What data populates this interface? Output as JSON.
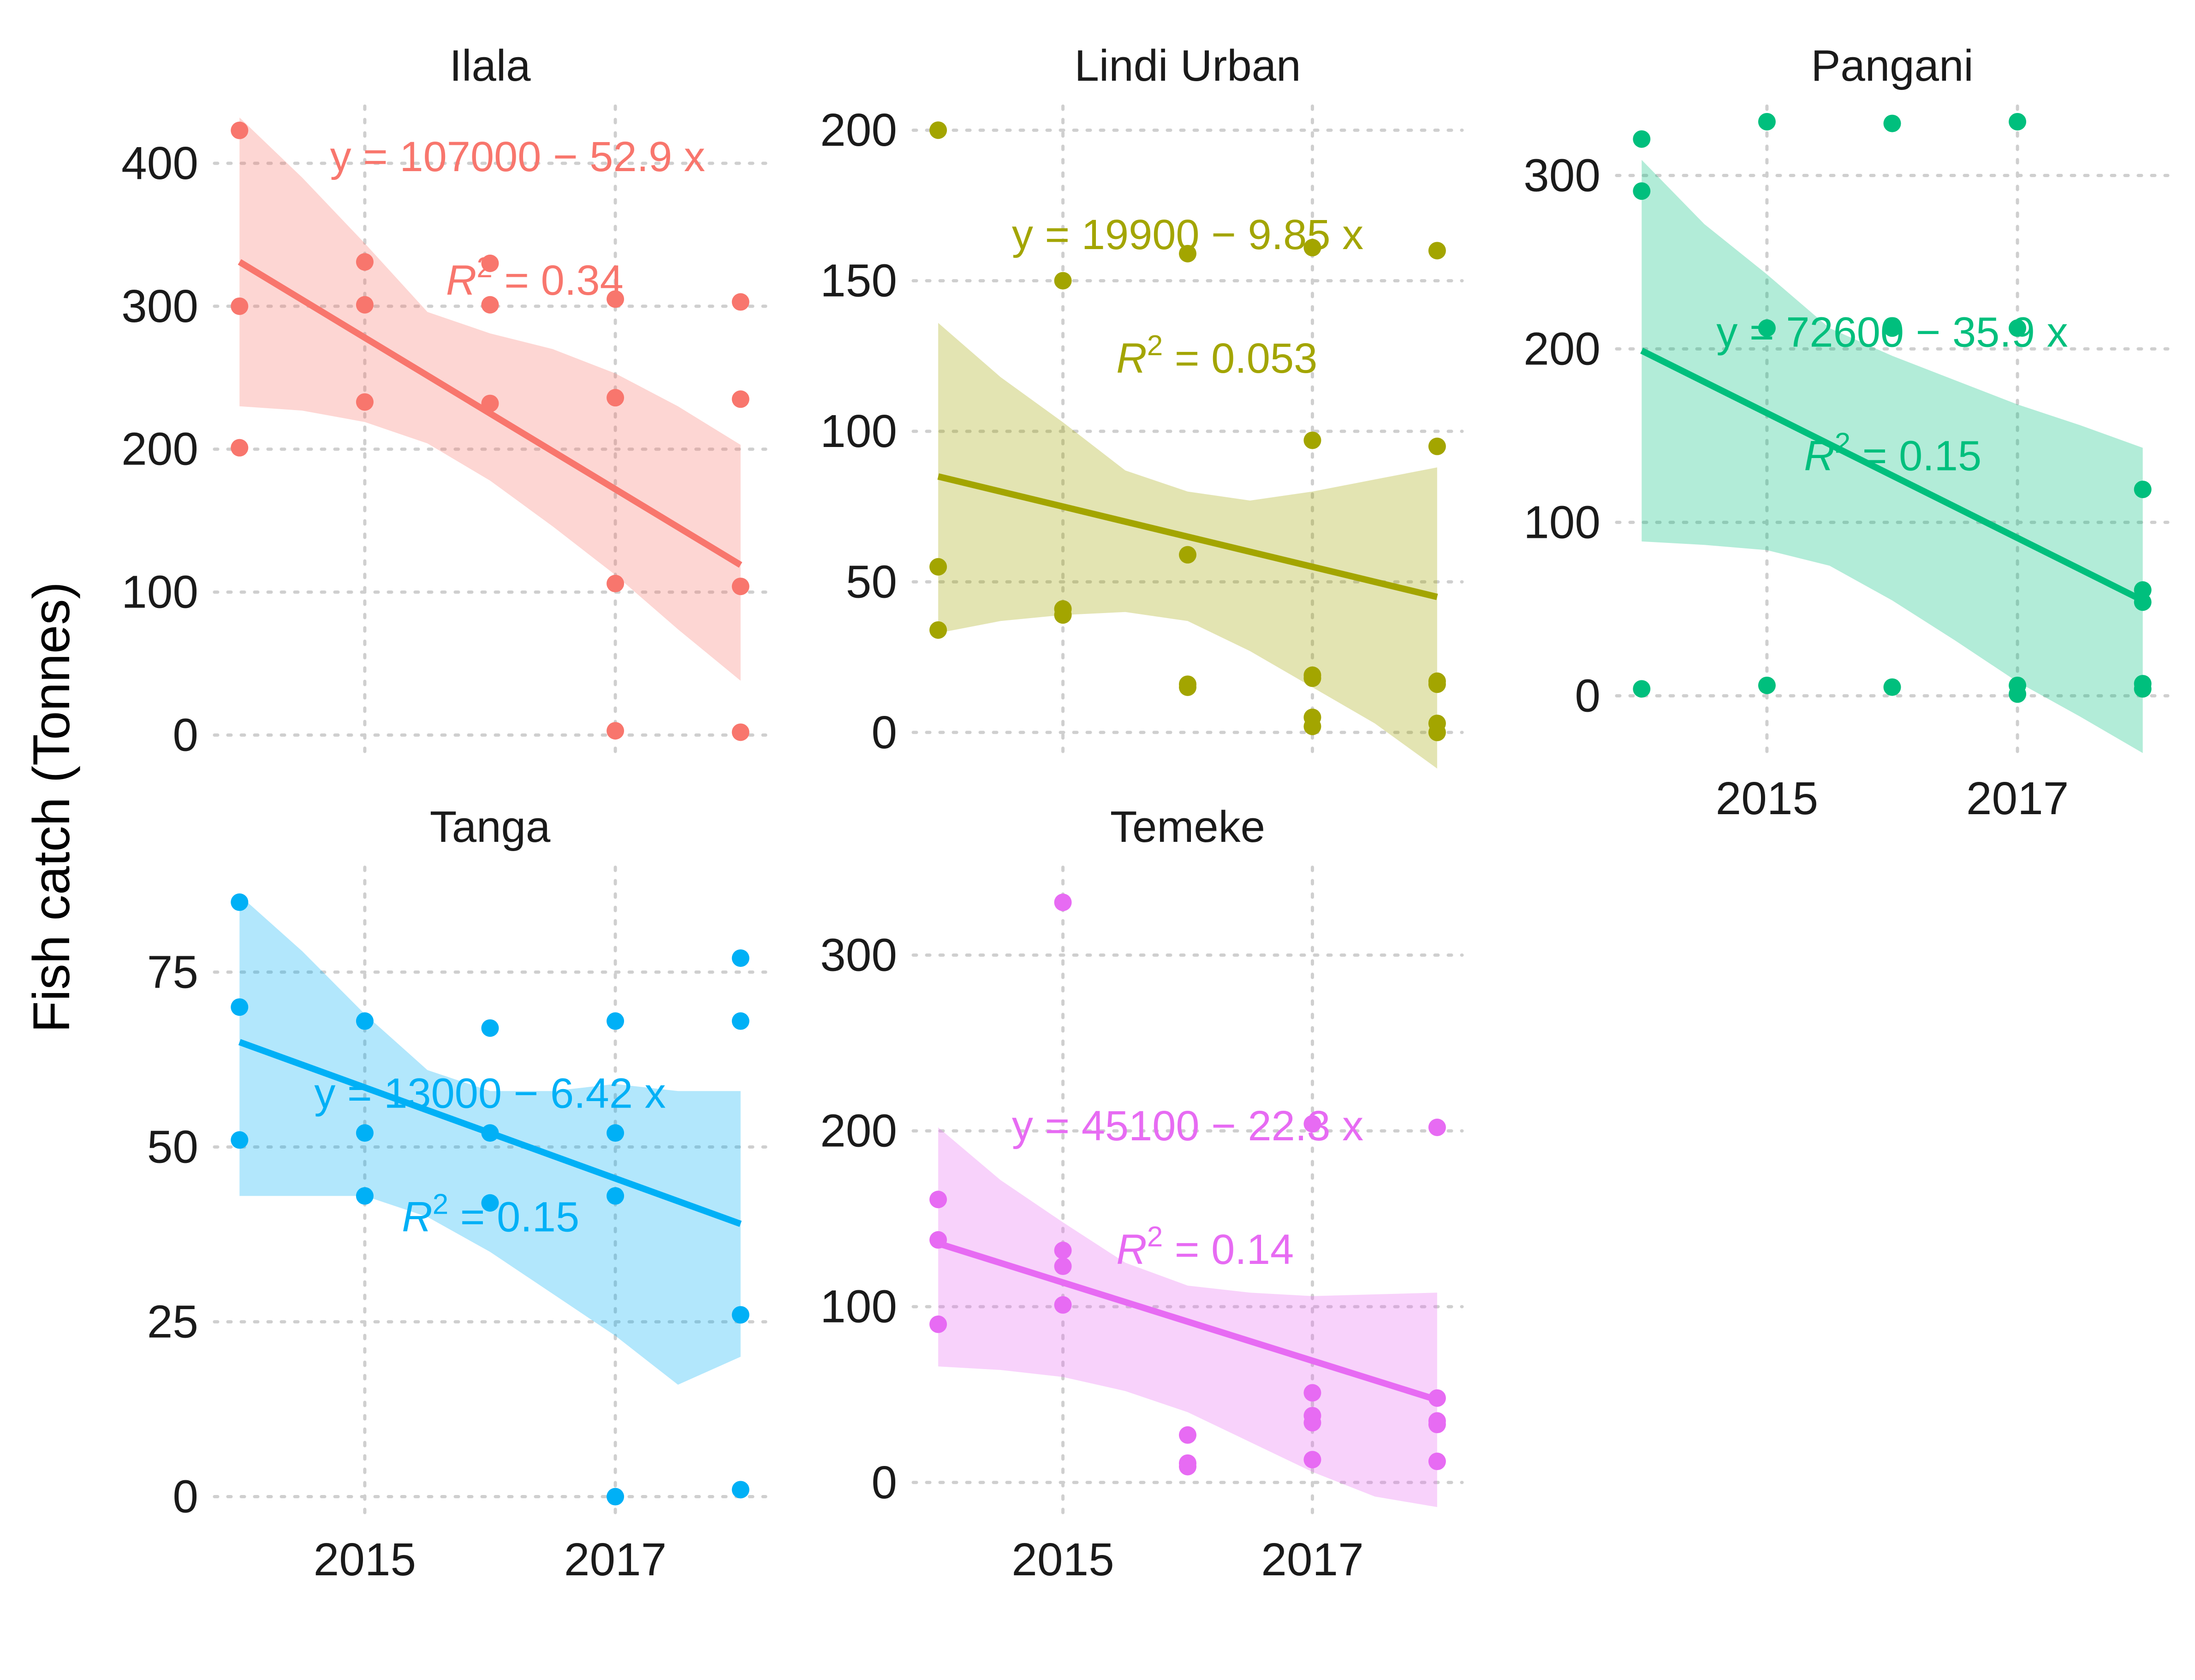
{
  "chart_data": {
    "type": "scatter",
    "ylabel": "Fish catch (Tonnes)",
    "xlabel": "",
    "x_ticks": [
      2015,
      2017
    ],
    "x_range": [
      2014,
      2018
    ],
    "grid": "dotted",
    "legend": "none",
    "panels": [
      {
        "name": "Ilala",
        "color": "#F8766D",
        "y_ticks": [
          0,
          100,
          200,
          300,
          400
        ],
        "ylim": [
          -15,
          440
        ],
        "points": [
          [
            2014,
            423
          ],
          [
            2014,
            300
          ],
          [
            2014,
            201
          ],
          [
            2015,
            331
          ],
          [
            2015,
            301
          ],
          [
            2015,
            233
          ],
          [
            2016,
            330
          ],
          [
            2016,
            301
          ],
          [
            2016,
            232
          ],
          [
            2017,
            305
          ],
          [
            2017,
            236
          ],
          [
            2017,
            106
          ],
          [
            2017,
            3
          ],
          [
            2018,
            303
          ],
          [
            2018,
            235
          ],
          [
            2018,
            104
          ],
          [
            2018,
            2
          ]
        ],
        "fit": {
          "y_start": 331,
          "y_end": 119
        },
        "band": {
          "x": [
            2014,
            2014.5,
            2015,
            2015.5,
            2016,
            2016.5,
            2017,
            2017.5,
            2018
          ],
          "lower": [
            230,
            227,
            219,
            204,
            178,
            146,
            112,
            74,
            38
          ],
          "upper": [
            432,
            390,
            344,
            296,
            281,
            270,
            253,
            230,
            203
          ]
        },
        "equation": "y = 107000 − 52.9 x",
        "r2_value": "0.34"
      },
      {
        "name": "Lindi Urban",
        "color": "#A3A500",
        "y_ticks": [
          0,
          50,
          100,
          150,
          200
        ],
        "ylim": [
          -8,
          208
        ],
        "points": [
          [
            2014,
            200
          ],
          [
            2014,
            55
          ],
          [
            2014,
            34
          ],
          [
            2015,
            150
          ],
          [
            2015,
            41
          ],
          [
            2015,
            39
          ],
          [
            2016,
            159
          ],
          [
            2016,
            59
          ],
          [
            2016,
            16
          ],
          [
            2016,
            15
          ],
          [
            2017,
            161
          ],
          [
            2017,
            97
          ],
          [
            2017,
            19
          ],
          [
            2017,
            18
          ],
          [
            2017,
            5
          ],
          [
            2017,
            2
          ],
          [
            2018,
            160
          ],
          [
            2018,
            95
          ],
          [
            2018,
            17
          ],
          [
            2018,
            16
          ],
          [
            2018,
            3
          ],
          [
            2018,
            0
          ]
        ],
        "fit": {
          "y_start": 85,
          "y_end": 45
        },
        "band": {
          "x": [
            2014,
            2014.5,
            2015,
            2015.5,
            2016,
            2016.5,
            2017,
            2017.5,
            2018
          ],
          "lower": [
            33,
            37,
            39,
            40,
            37,
            27,
            15,
            3,
            -12
          ],
          "upper": [
            136,
            118,
            103,
            87,
            80,
            77,
            80,
            84,
            88
          ]
        },
        "equation": "y = 19900 − 9.85 x",
        "r2_value": "0.053"
      },
      {
        "name": "Pangani",
        "color": "#00BF7D",
        "y_ticks": [
          0,
          100,
          200,
          300
        ],
        "ylim": [
          -35,
          340
        ],
        "points": [
          [
            2014,
            321
          ],
          [
            2014,
            291
          ],
          [
            2014,
            4
          ],
          [
            2015,
            331
          ],
          [
            2015,
            212
          ],
          [
            2015,
            6
          ],
          [
            2016,
            330
          ],
          [
            2016,
            212
          ],
          [
            2016,
            5
          ],
          [
            2017,
            331
          ],
          [
            2017,
            212
          ],
          [
            2017,
            6
          ],
          [
            2017,
            1
          ],
          [
            2018,
            119
          ],
          [
            2018,
            61
          ],
          [
            2018,
            54
          ],
          [
            2018,
            7
          ],
          [
            2018,
            4
          ]
        ],
        "fit": {
          "y_start": 199,
          "y_end": 55
        },
        "band": {
          "x": [
            2014,
            2014.5,
            2015,
            2015.5,
            2016,
            2016.5,
            2017,
            2017.5,
            2018
          ],
          "lower": [
            89,
            87,
            84,
            75,
            55,
            32,
            8,
            -12,
            -33
          ],
          "upper": [
            309,
            272,
            243,
            212,
            196,
            182,
            168,
            156,
            143
          ]
        },
        "equation": "y = 72600 − 35.9 x",
        "r2_value": "0.15"
      },
      {
        "name": "Tanga",
        "color": "#00B0F6",
        "y_ticks": [
          0,
          25,
          50,
          75
        ],
        "ylim": [
          -3,
          90
        ],
        "points": [
          [
            2014,
            85
          ],
          [
            2014,
            70
          ],
          [
            2014,
            51
          ],
          [
            2015,
            68
          ],
          [
            2015,
            52
          ],
          [
            2015,
            43
          ],
          [
            2016,
            67
          ],
          [
            2016,
            52
          ],
          [
            2016,
            42
          ],
          [
            2017,
            68
          ],
          [
            2017,
            52
          ],
          [
            2017,
            43
          ],
          [
            2017,
            0
          ],
          [
            2018,
            77
          ],
          [
            2018,
            68
          ],
          [
            2018,
            26
          ],
          [
            2018,
            1
          ]
        ],
        "fit": {
          "y_start": 65,
          "y_end": 39
        },
        "band": {
          "x": [
            2014,
            2014.5,
            2015,
            2015.5,
            2016,
            2016.5,
            2017,
            2017.5,
            2018
          ],
          "lower": [
            43,
            43,
            43,
            40,
            35,
            29,
            23,
            16,
            20
          ],
          "upper": [
            86,
            78,
            69,
            61,
            58,
            58,
            59,
            58,
            58
          ]
        },
        "equation": "y = 13000 − 6.42 x",
        "r2_value": "0.15"
      },
      {
        "name": "Temeke",
        "color": "#E76BF3",
        "y_ticks": [
          0,
          100,
          200,
          300
        ],
        "ylim": [
          -20,
          350
        ],
        "points": [
          [
            2014,
            161
          ],
          [
            2014,
            138
          ],
          [
            2014,
            90
          ],
          [
            2015,
            330
          ],
          [
            2015,
            132
          ],
          [
            2015,
            123
          ],
          [
            2015,
            101
          ],
          [
            2016,
            27
          ],
          [
            2016,
            11
          ],
          [
            2016,
            9
          ],
          [
            2017,
            204
          ],
          [
            2017,
            51
          ],
          [
            2017,
            38
          ],
          [
            2017,
            34
          ],
          [
            2017,
            13
          ],
          [
            2018,
            202
          ],
          [
            2018,
            48
          ],
          [
            2018,
            35
          ],
          [
            2018,
            33
          ],
          [
            2018,
            12
          ]
        ],
        "fit": {
          "y_start": 136,
          "y_end": 47
        },
        "band": {
          "x": [
            2014,
            2014.5,
            2015,
            2015.5,
            2016,
            2016.5,
            2017,
            2017.5,
            2018
          ],
          "lower": [
            66,
            64,
            60,
            52,
            40,
            23,
            6,
            -8,
            -14
          ],
          "upper": [
            202,
            172,
            148,
            125,
            112,
            108,
            106,
            107,
            108
          ]
        },
        "equation": "y = 45100 − 22.3 x",
        "r2_value": "0.14"
      }
    ]
  }
}
